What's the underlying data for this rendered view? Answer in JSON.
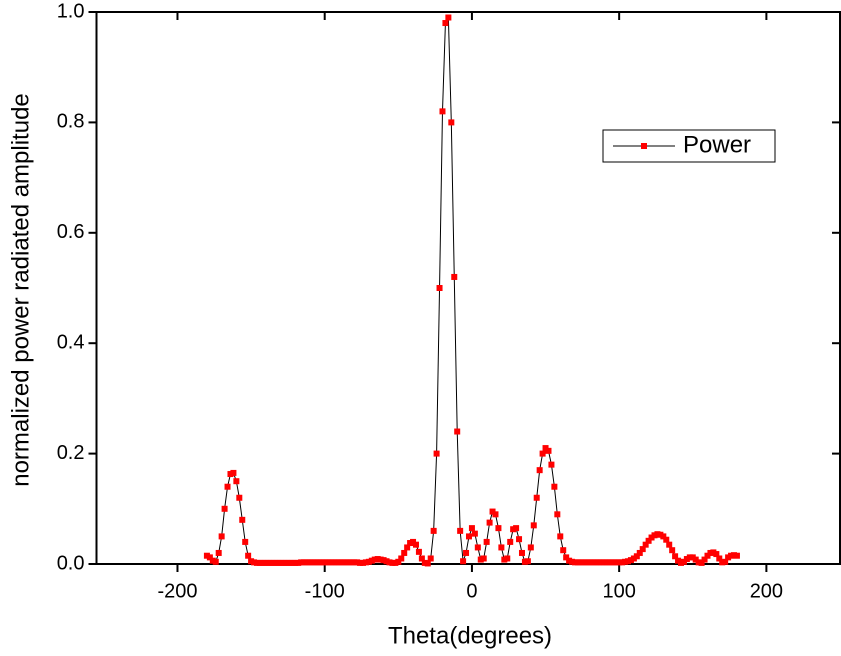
{
  "chart_data": {
    "type": "line",
    "xlabel": "Theta(degrees)",
    "ylabel": "normalized power radiated amplitude",
    "xlim": [
      -255,
      250
    ],
    "ylim": [
      0,
      1
    ],
    "xticks": [
      -200,
      -100,
      0,
      100,
      200
    ],
    "yticks": [
      {
        "value": 0,
        "label": "0.0"
      },
      0.2,
      0.4,
      0.6,
      0.8,
      {
        "value": 1,
        "label": "1.0"
      }
    ],
    "legend": "upper right",
    "x": [
      -180,
      -178,
      -176,
      -174,
      -172,
      -170,
      -168,
      -166,
      -164,
      -162,
      -160,
      -158,
      -156,
      -154,
      -152,
      -150,
      -148,
      -146,
      -144,
      -142,
      -140,
      -138,
      -136,
      -134,
      -132,
      -130,
      -128,
      -126,
      -124,
      -122,
      -120,
      -118,
      -116,
      -114,
      -112,
      -110,
      -108,
      -106,
      -104,
      -102,
      -100,
      -98,
      -96,
      -94,
      -92,
      -90,
      -88,
      -86,
      -84,
      -82,
      -80,
      -78,
      -76,
      -74,
      -72,
      -70,
      -68,
      -66,
      -64,
      -62,
      -60,
      -58,
      -56,
      -54,
      -52,
      -50,
      -48,
      -46,
      -44,
      -42,
      -40,
      -38,
      -36,
      -34,
      -32,
      -30,
      -28,
      -26,
      -24,
      -22,
      -20,
      -18,
      -16,
      -14,
      -12,
      -10,
      -8,
      -6,
      -4,
      -2,
      0,
      2,
      4,
      6,
      8,
      10,
      12,
      14,
      16,
      18,
      20,
      22,
      24,
      26,
      28,
      30,
      32,
      34,
      36,
      38,
      40,
      42,
      44,
      46,
      48,
      50,
      52,
      54,
      56,
      58,
      60,
      62,
      64,
      66,
      68,
      70,
      72,
      74,
      76,
      78,
      80,
      82,
      84,
      86,
      88,
      90,
      92,
      94,
      96,
      98,
      100,
      102,
      104,
      106,
      108,
      110,
      112,
      114,
      116,
      118,
      120,
      122,
      124,
      126,
      128,
      130,
      132,
      134,
      136,
      138,
      140,
      142,
      144,
      146,
      148,
      150,
      152,
      154,
      156,
      158,
      160,
      162,
      164,
      166,
      168,
      170,
      172,
      174,
      176,
      178,
      180
    ],
    "series": [
      {
        "name": "Power",
        "color": "#ff0000",
        "line_color": "#000000",
        "values": [
          0.015,
          0.012,
          0.006,
          0.004,
          0.02,
          0.05,
          0.1,
          0.14,
          0.163,
          0.165,
          0.15,
          0.12,
          0.08,
          0.04,
          0.015,
          0.005,
          0.003,
          0.002,
          0.002,
          0.002,
          0.002,
          0.002,
          0.002,
          0.002,
          0.002,
          0.002,
          0.002,
          0.002,
          0.002,
          0.002,
          0.002,
          0.002,
          0.003,
          0.003,
          0.003,
          0.003,
          0.003,
          0.003,
          0.003,
          0.003,
          0.003,
          0.003,
          0.003,
          0.003,
          0.003,
          0.003,
          0.003,
          0.003,
          0.003,
          0.003,
          0.003,
          0.003,
          0.002,
          0.002,
          0.003,
          0.004,
          0.006,
          0.008,
          0.009,
          0.008,
          0.007,
          0.005,
          0.003,
          0.002,
          0.002,
          0.004,
          0.01,
          0.02,
          0.03,
          0.038,
          0.04,
          0.035,
          0.022,
          0.01,
          0.002,
          0.001,
          0.01,
          0.06,
          0.2,
          0.5,
          0.82,
          0.98,
          0.99,
          0.8,
          0.52,
          0.24,
          0.06,
          0.005,
          0.02,
          0.05,
          0.065,
          0.055,
          0.03,
          0.008,
          0.01,
          0.04,
          0.075,
          0.095,
          0.09,
          0.065,
          0.03,
          0.008,
          0.01,
          0.04,
          0.063,
          0.065,
          0.045,
          0.02,
          0.004,
          0.005,
          0.03,
          0.07,
          0.12,
          0.17,
          0.2,
          0.21,
          0.205,
          0.18,
          0.14,
          0.09,
          0.05,
          0.025,
          0.012,
          0.006,
          0.004,
          0.003,
          0.003,
          0.003,
          0.003,
          0.003,
          0.003,
          0.003,
          0.003,
          0.003,
          0.003,
          0.003,
          0.003,
          0.003,
          0.003,
          0.003,
          0.003,
          0.003,
          0.004,
          0.005,
          0.007,
          0.01,
          0.014,
          0.02,
          0.027,
          0.035,
          0.042,
          0.048,
          0.052,
          0.054,
          0.053,
          0.05,
          0.044,
          0.035,
          0.025,
          0.014,
          0.006,
          0.002,
          0.004,
          0.009,
          0.012,
          0.012,
          0.008,
          0.003,
          0.002,
          0.008,
          0.015,
          0.02,
          0.021,
          0.018,
          0.01,
          0.003,
          0.004,
          0.012,
          0.015,
          0.016,
          0.015
        ]
      }
    ]
  }
}
